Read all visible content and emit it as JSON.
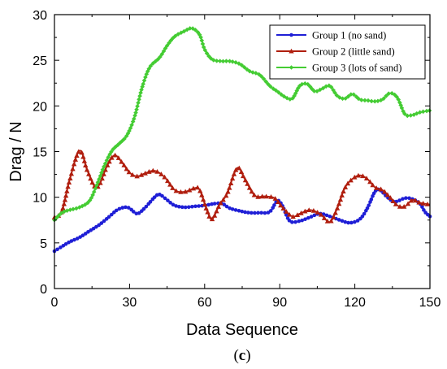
{
  "chart_data": {
    "type": "line",
    "xlabel": "Data Sequence",
    "ylabel": "Drag / N",
    "caption_open": "(",
    "caption_letter": "c",
    "caption_close": ")",
    "xlim": [
      0,
      150
    ],
    "ylim": [
      0,
      30
    ],
    "xticks": [
      0,
      30,
      60,
      90,
      120,
      150
    ],
    "yticks": [
      0,
      5,
      10,
      15,
      20,
      25,
      30
    ],
    "legend_position": "top-right",
    "grid": false,
    "series": [
      {
        "name": "Group 1 (no sand)",
        "color": "#1f1fd6",
        "marker": "circle",
        "points": [
          [
            0,
            4.1
          ],
          [
            3,
            4.6
          ],
          [
            6,
            5.1
          ],
          [
            10,
            5.6
          ],
          [
            14,
            6.3
          ],
          [
            18,
            7.0
          ],
          [
            22,
            7.9
          ],
          [
            25,
            8.6
          ],
          [
            28,
            8.9
          ],
          [
            30,
            8.8
          ],
          [
            33,
            8.2
          ],
          [
            36,
            8.8
          ],
          [
            40,
            10.0
          ],
          [
            42,
            10.3
          ],
          [
            45,
            9.7
          ],
          [
            48,
            9.1
          ],
          [
            52,
            8.9
          ],
          [
            56,
            9.0
          ],
          [
            60,
            9.1
          ],
          [
            64,
            9.3
          ],
          [
            67,
            9.3
          ],
          [
            70,
            8.8
          ],
          [
            74,
            8.5
          ],
          [
            78,
            8.3
          ],
          [
            82,
            8.3
          ],
          [
            86,
            8.4
          ],
          [
            89,
            9.6
          ],
          [
            91,
            9.1
          ],
          [
            94,
            7.4
          ],
          [
            98,
            7.4
          ],
          [
            102,
            7.8
          ],
          [
            106,
            8.2
          ],
          [
            110,
            7.9
          ],
          [
            114,
            7.5
          ],
          [
            118,
            7.2
          ],
          [
            122,
            7.6
          ],
          [
            125,
            8.8
          ],
          [
            128,
            10.6
          ],
          [
            130,
            10.8
          ],
          [
            133,
            10.0
          ],
          [
            136,
            9.5
          ],
          [
            140,
            9.9
          ],
          [
            143,
            9.8
          ],
          [
            146,
            9.3
          ],
          [
            148,
            8.4
          ],
          [
            150,
            7.9
          ]
        ]
      },
      {
        "name": "Group 2 (little sand)",
        "color": "#b01e0e",
        "marker": "triangle",
        "points": [
          [
            0,
            7.8
          ],
          [
            3,
            8.5
          ],
          [
            6,
            11.8
          ],
          [
            10,
            15.1
          ],
          [
            13,
            13.0
          ],
          [
            16,
            11.2
          ],
          [
            18,
            11.4
          ],
          [
            21,
            13.4
          ],
          [
            24,
            14.6
          ],
          [
            27,
            13.8
          ],
          [
            30,
            12.7
          ],
          [
            33,
            12.3
          ],
          [
            36,
            12.6
          ],
          [
            40,
            12.9
          ],
          [
            44,
            12.2
          ],
          [
            48,
            10.8
          ],
          [
            52,
            10.6
          ],
          [
            56,
            11.0
          ],
          [
            58,
            10.8
          ],
          [
            61,
            8.5
          ],
          [
            63,
            7.6
          ],
          [
            66,
            9.2
          ],
          [
            69,
            10.4
          ],
          [
            73,
            13.2
          ],
          [
            76,
            12.0
          ],
          [
            80,
            10.2
          ],
          [
            84,
            10.1
          ],
          [
            88,
            9.9
          ],
          [
            91,
            8.9
          ],
          [
            95,
            7.9
          ],
          [
            98,
            8.2
          ],
          [
            102,
            8.6
          ],
          [
            106,
            8.2
          ],
          [
            110,
            7.3
          ],
          [
            113,
            8.8
          ],
          [
            116,
            11.0
          ],
          [
            119,
            12.0
          ],
          [
            122,
            12.4
          ],
          [
            125,
            12.0
          ],
          [
            128,
            11.1
          ],
          [
            131,
            10.8
          ],
          [
            134,
            10.0
          ],
          [
            137,
            9.1
          ],
          [
            140,
            9.0
          ],
          [
            143,
            9.7
          ],
          [
            146,
            9.4
          ],
          [
            150,
            9.2
          ]
        ]
      },
      {
        "name": "Group 3 (lots of sand)",
        "color": "#44cc33",
        "marker": "diamond",
        "points": [
          [
            0,
            7.5
          ],
          [
            3,
            8.3
          ],
          [
            6,
            8.6
          ],
          [
            10,
            8.9
          ],
          [
            14,
            9.6
          ],
          [
            17,
            11.4
          ],
          [
            20,
            13.5
          ],
          [
            23,
            15.1
          ],
          [
            26,
            15.9
          ],
          [
            29,
            16.8
          ],
          [
            32,
            18.8
          ],
          [
            35,
            22.0
          ],
          [
            38,
            24.2
          ],
          [
            42,
            25.3
          ],
          [
            45,
            26.6
          ],
          [
            48,
            27.6
          ],
          [
            52,
            28.2
          ],
          [
            55,
            28.5
          ],
          [
            58,
            27.8
          ],
          [
            60,
            26.2
          ],
          [
            63,
            25.1
          ],
          [
            67,
            24.9
          ],
          [
            70,
            24.9
          ],
          [
            74,
            24.6
          ],
          [
            78,
            23.8
          ],
          [
            82,
            23.4
          ],
          [
            86,
            22.2
          ],
          [
            89,
            21.6
          ],
          [
            92,
            21.0
          ],
          [
            95,
            20.8
          ],
          [
            98,
            22.2
          ],
          [
            101,
            22.4
          ],
          [
            104,
            21.6
          ],
          [
            107,
            21.9
          ],
          [
            110,
            22.2
          ],
          [
            113,
            21.1
          ],
          [
            116,
            20.8
          ],
          [
            119,
            21.3
          ],
          [
            122,
            20.7
          ],
          [
            125,
            20.6
          ],
          [
            128,
            20.5
          ],
          [
            131,
            20.7
          ],
          [
            134,
            21.4
          ],
          [
            137,
            20.9
          ],
          [
            140,
            19.1
          ],
          [
            143,
            19.0
          ],
          [
            146,
            19.3
          ],
          [
            150,
            19.5
          ]
        ]
      }
    ]
  }
}
